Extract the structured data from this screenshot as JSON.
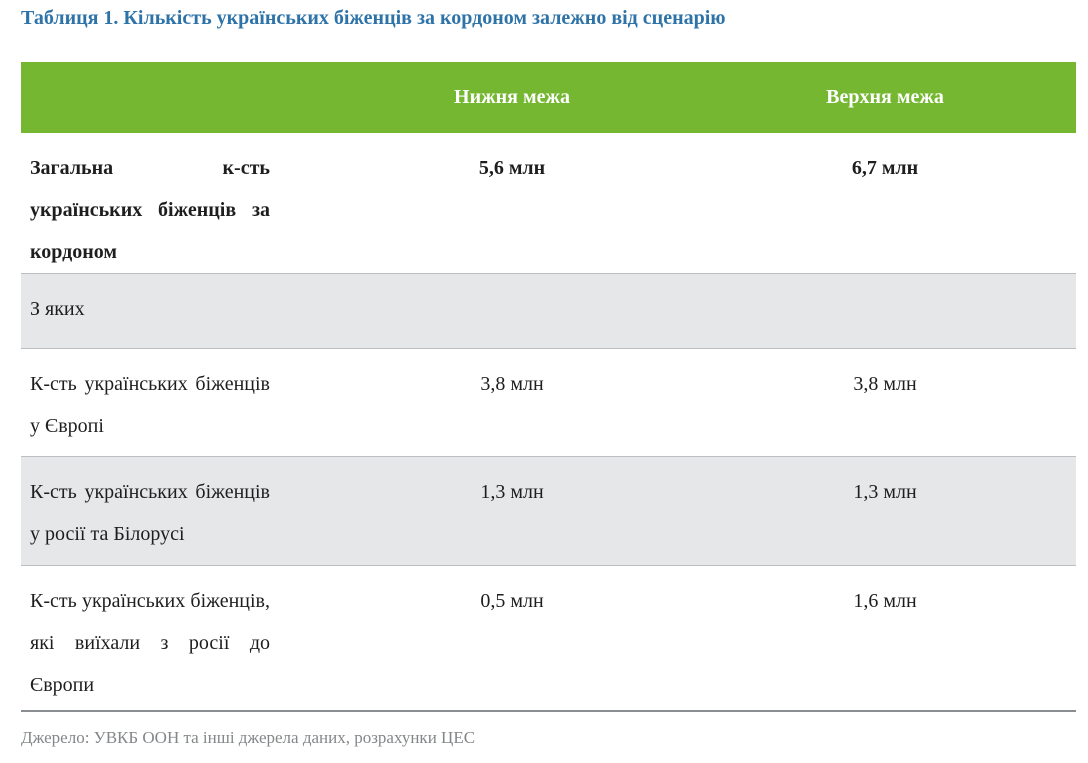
{
  "title": "Таблиця 1. Кількість українських біженців за кордоном залежно від сценарію",
  "table": {
    "columns": [
      "",
      "Нижня межа",
      "Верхня межа"
    ],
    "rows": [
      {
        "label": "Загальна к-сть українських біженців за кордоном",
        "lower": "5,6 млн",
        "upper": "6,7 млн",
        "bold": true,
        "shaded": false,
        "span": false
      },
      {
        "label": "З яких",
        "lower": "",
        "upper": "",
        "bold": false,
        "shaded": true,
        "span": true
      },
      {
        "label": "К-сть українських біженців у Європі",
        "lower": "3,8 млн",
        "upper": "3,8 млн",
        "bold": false,
        "shaded": false,
        "span": false
      },
      {
        "label": "К-сть українських біженців у росії та Білорусі",
        "lower": "1,3 млн",
        "upper": "1,3 млн",
        "bold": false,
        "shaded": true,
        "span": false
      },
      {
        "label": "К-сть українських біженців, які виїхали з росії до Європи",
        "lower": "0,5 млн",
        "upper": "1,6 млн",
        "bold": false,
        "shaded": false,
        "span": false
      }
    ]
  },
  "source": "Джерело: УВКБ ООН та інші джерела даних, розрахунки ЦЕС",
  "colors": {
    "title-blue": "#2E73A8",
    "header-green": "#76B732",
    "header-text": "#FFFFFF",
    "shaded-row": "#E6E7E8",
    "shaded-border": "#BDBEC2",
    "table-bottom-border": "#8A8D91",
    "body-text": "#1E1E1E",
    "source-text": "#848789"
  }
}
